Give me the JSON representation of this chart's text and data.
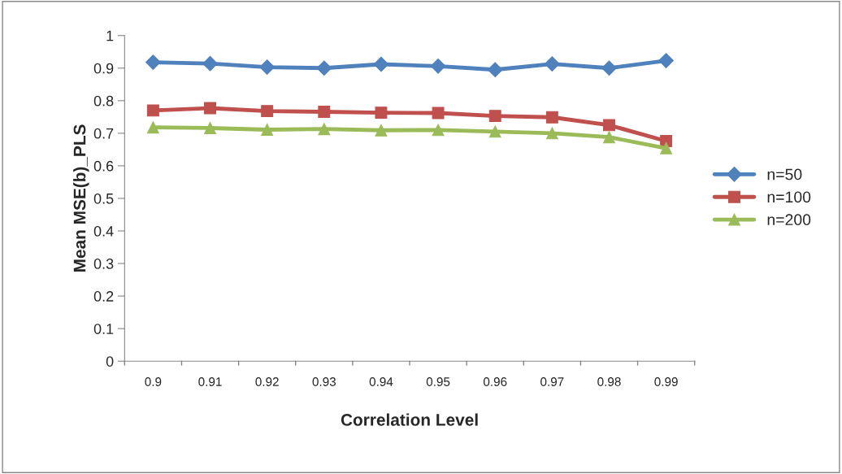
{
  "chart_data": {
    "type": "line",
    "xlabel": "Correlation Level",
    "ylabel": "Mean MSE(b)_PLS",
    "categories": [
      "0.9",
      "0.91",
      "0.92",
      "0.93",
      "0.94",
      "0.95",
      "0.96",
      "0.97",
      "0.98",
      "0.99"
    ],
    "series": [
      {
        "name": "n=50",
        "color": "#4f81bd",
        "marker": "diamond",
        "values": [
          0.918,
          0.914,
          0.903,
          0.9,
          0.912,
          0.906,
          0.895,
          0.913,
          0.9,
          0.923
        ]
      },
      {
        "name": "n=100",
        "color": "#c0504d",
        "marker": "square",
        "values": [
          0.77,
          0.777,
          0.768,
          0.766,
          0.763,
          0.762,
          0.753,
          0.749,
          0.725,
          0.676
        ]
      },
      {
        "name": "n=200",
        "color": "#9bbb59",
        "marker": "triangle",
        "values": [
          0.718,
          0.716,
          0.711,
          0.713,
          0.709,
          0.71,
          0.705,
          0.7,
          0.688,
          0.654
        ]
      }
    ],
    "ylim": [
      0,
      1
    ],
    "yticks": [
      0,
      0.1,
      0.2,
      0.3,
      0.4,
      0.5,
      0.6,
      0.7,
      0.8,
      0.9,
      1
    ],
    "grid": false,
    "legend": "right"
  }
}
